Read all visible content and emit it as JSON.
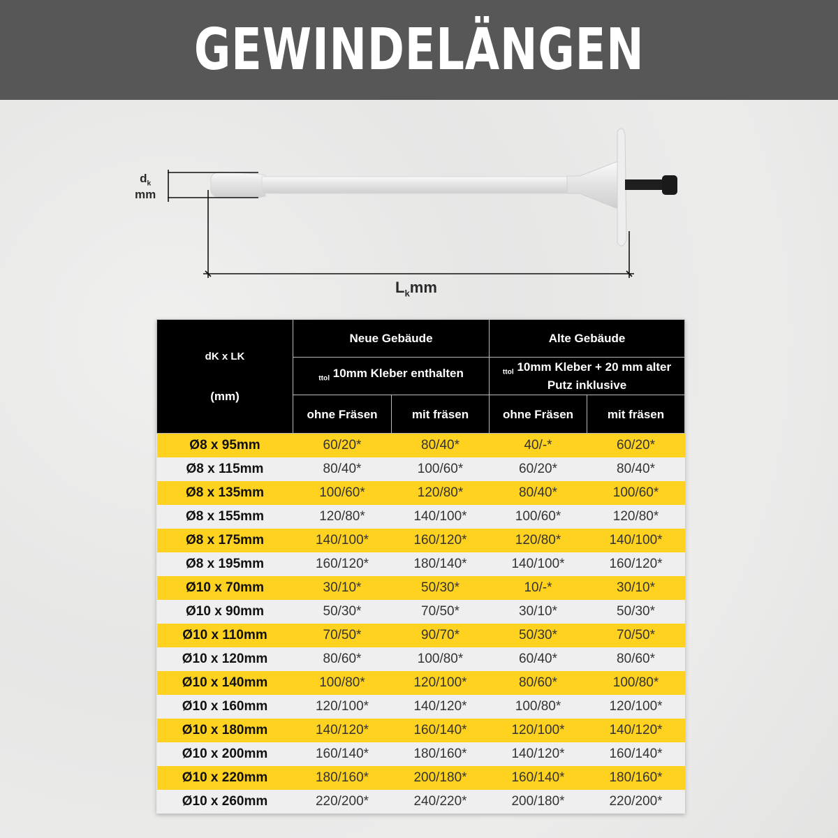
{
  "title": "GEWINDELÄNGEN",
  "diagram": {
    "dk_label": "d",
    "dk_sub": "k",
    "dk_unit": "mm",
    "lk_label": "L",
    "lk_sub": "k",
    "lk_unit": "mm"
  },
  "table": {
    "corner_top": "dK x LK",
    "corner_bottom": "(mm)",
    "groups": [
      {
        "name": "Neue Gebäude",
        "note_prefix": "ttol",
        "note": "10mm Kleber enthalten"
      },
      {
        "name": "Alte Gebäude",
        "note_prefix": "ttol",
        "note": "10mm Kleber + 20 mm alter Putz inklusive"
      }
    ],
    "subheaders": [
      "ohne Fräsen",
      "mit fräsen",
      "ohne Fräsen",
      "mit fräsen"
    ],
    "row_colors": {
      "odd": "#ffd21f",
      "even": "#efefef"
    },
    "rows": [
      [
        "Ø8 x 95mm",
        "60/20*",
        "80/40*",
        "40/-*",
        "60/20*"
      ],
      [
        "Ø8 x 115mm",
        "80/40*",
        "100/60*",
        "60/20*",
        "80/40*"
      ],
      [
        "Ø8 x 135mm",
        "100/60*",
        "120/80*",
        "80/40*",
        "100/60*"
      ],
      [
        "Ø8 x 155mm",
        "120/80*",
        "140/100*",
        "100/60*",
        "120/80*"
      ],
      [
        "Ø8 x 175mm",
        "140/100*",
        "160/120*",
        "120/80*",
        "140/100*"
      ],
      [
        "Ø8 x 195mm",
        "160/120*",
        "180/140*",
        "140/100*",
        "160/120*"
      ],
      [
        "Ø10 x 70mm",
        "30/10*",
        "50/30*",
        "10/-*",
        "30/10*"
      ],
      [
        "Ø10 x 90mm",
        "50/30*",
        "70/50*",
        "30/10*",
        "50/30*"
      ],
      [
        "Ø10 x 110mm",
        "70/50*",
        "90/70*",
        "50/30*",
        "70/50*"
      ],
      [
        "Ø10 x 120mm",
        "80/60*",
        "100/80*",
        "60/40*",
        "80/60*"
      ],
      [
        "Ø10 x 140mm",
        "100/80*",
        "120/100*",
        "80/60*",
        "100/80*"
      ],
      [
        "Ø10 x 160mm",
        "120/100*",
        "140/120*",
        "100/80*",
        "120/100*"
      ],
      [
        "Ø10 x 180mm",
        "140/120*",
        "160/140*",
        "120/100*",
        "140/120*"
      ],
      [
        "Ø10 x 200mm",
        "160/140*",
        "180/160*",
        "140/120*",
        "160/140*"
      ],
      [
        "Ø10 x 220mm",
        "180/160*",
        "200/180*",
        "160/140*",
        "180/160*"
      ],
      [
        "Ø10 x 260mm",
        "220/200*",
        "240/220*",
        "200/180*",
        "220/200*"
      ]
    ]
  }
}
